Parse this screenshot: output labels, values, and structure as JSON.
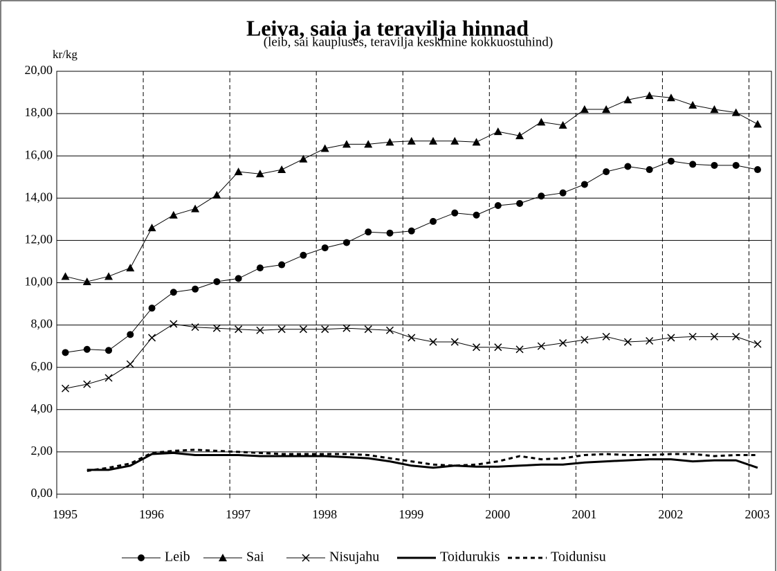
{
  "chart_data": {
    "type": "line",
    "title": "Leiva, saia ja teravilja hinnad",
    "subtitle": "(leib, sai kaupluses, teravilja keskmine kokkuostuhind)",
    "ylabel": "kr/kg",
    "x_start": 1995.1,
    "x_step": 0.25,
    "xlim": [
      1995,
      2003.26
    ],
    "xticks": [
      1995,
      1996,
      1997,
      1998,
      1999,
      2000,
      2001,
      2002,
      2003
    ],
    "ylim": [
      0,
      20
    ],
    "yticks": [
      {
        "value": 0,
        "label": "0,00"
      },
      {
        "value": 2,
        "label": "2,00"
      },
      {
        "value": 4,
        "label": "4,00"
      },
      {
        "value": 6,
        "label": "6,00"
      },
      {
        "value": 8,
        "label": "8,00"
      },
      {
        "value": 10,
        "label": "10,00"
      },
      {
        "value": 12,
        "label": "12,00"
      },
      {
        "value": 14,
        "label": "14,00"
      },
      {
        "value": 16,
        "label": "16,00"
      },
      {
        "value": 18,
        "label": "18,00"
      },
      {
        "value": 20,
        "label": "20,00"
      }
    ],
    "grid": true,
    "legend": "bottom",
    "series": [
      {
        "name": "Leib",
        "color": "#000000",
        "marker": "circle",
        "style": "solid",
        "width": 1,
        "values": [
          6.7,
          6.85,
          6.8,
          7.55,
          8.8,
          9.55,
          9.7,
          10.05,
          10.2,
          10.7,
          10.85,
          11.3,
          11.65,
          11.9,
          12.4,
          12.35,
          12.45,
          12.9,
          13.3,
          13.2,
          13.65,
          13.75,
          14.1,
          14.25,
          14.65,
          15.25,
          15.5,
          15.35,
          15.75,
          15.6,
          15.55,
          15.55,
          15.35
        ]
      },
      {
        "name": "Sai",
        "color": "#000000",
        "marker": "triangle",
        "style": "solid",
        "width": 1,
        "values": [
          10.3,
          10.05,
          10.3,
          10.7,
          12.6,
          13.2,
          13.5,
          14.15,
          15.25,
          15.15,
          15.35,
          15.85,
          16.35,
          16.55,
          16.55,
          16.65,
          16.7,
          16.7,
          16.7,
          16.65,
          17.15,
          16.95,
          17.6,
          17.45,
          18.2,
          18.2,
          18.65,
          18.85,
          18.75,
          18.4,
          18.2,
          18.05,
          17.5
        ]
      },
      {
        "name": "Nisujahu",
        "color": "#000000",
        "marker": "cross",
        "style": "solid",
        "width": 1,
        "values": [
          5.0,
          5.2,
          5.5,
          6.15,
          7.4,
          8.05,
          7.9,
          7.85,
          7.8,
          7.75,
          7.8,
          7.8,
          7.8,
          7.85,
          7.8,
          7.75,
          7.4,
          7.2,
          7.2,
          6.95,
          6.95,
          6.85,
          7.0,
          7.15,
          7.3,
          7.45,
          7.2,
          7.25,
          7.4,
          7.45,
          7.45,
          7.45,
          7.1
        ]
      },
      {
        "name": "Toidurukis",
        "color": "#000000",
        "marker": "none",
        "style": "solid",
        "width": 3,
        "values": [
          null,
          1.15,
          1.15,
          1.35,
          1.9,
          1.95,
          1.85,
          1.85,
          1.85,
          1.8,
          1.8,
          1.8,
          1.8,
          1.75,
          1.7,
          1.55,
          1.35,
          1.25,
          1.35,
          1.3,
          1.3,
          1.35,
          1.4,
          1.4,
          1.5,
          1.55,
          1.6,
          1.65,
          1.65,
          1.55,
          1.6,
          1.6,
          1.25
        ]
      },
      {
        "name": "Toidunisu",
        "color": "#000000",
        "marker": "none",
        "style": "dashed",
        "width": 3,
        "values": [
          null,
          1.1,
          1.25,
          1.45,
          1.95,
          2.05,
          2.1,
          2.05,
          2.0,
          1.95,
          1.9,
          1.9,
          1.9,
          1.9,
          1.85,
          1.7,
          1.55,
          1.4,
          1.35,
          1.4,
          1.55,
          1.8,
          1.65,
          1.7,
          1.85,
          1.9,
          1.85,
          1.85,
          1.9,
          1.9,
          1.8,
          1.85,
          1.85
        ]
      }
    ]
  }
}
